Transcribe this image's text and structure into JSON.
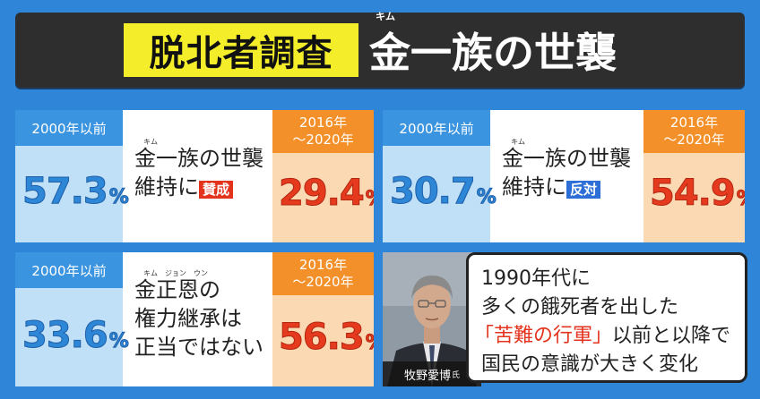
{
  "header": {
    "tag": "脱北者調査",
    "title": "金一族の世襲",
    "ruby": "キム"
  },
  "panels": [
    {
      "left_label": "2000年以前",
      "left_value": "57.3",
      "unit": "%",
      "middle_ruby": "キム",
      "middle_line1": "金一族の世襲",
      "middle_line2_prefix": "維持に",
      "middle_tag": "賛成",
      "right_label_1": "2016年",
      "right_label_2": "～2020年",
      "right_value": "29.4"
    },
    {
      "left_label": "2000年以前",
      "left_value": "30.7",
      "unit": "%",
      "middle_ruby": "キム",
      "middle_line1": "金一族の世襲",
      "middle_line2_prefix": "維持に",
      "middle_tag": "反対",
      "right_label_1": "2016年",
      "right_label_2": "～2020年",
      "right_value": "54.9"
    },
    {
      "left_label": "2000年以前",
      "left_value": "33.6",
      "unit": "%",
      "middle_ruby": "キム　ジョン　ウン",
      "middle_line1": "金正恩の",
      "middle_line2": "権力継承は",
      "middle_line3": "正当ではない",
      "right_label_1": "2016年",
      "right_label_2": "～2020年",
      "right_value": "56.3"
    }
  ],
  "person": {
    "name": "牧野愛博",
    "honorific": "氏"
  },
  "quote": {
    "line1": "1990年代に",
    "line2": "多くの餓死者を出した",
    "line3_red": "「苦難の行軍」",
    "line3_rest": "以前と以降で",
    "line4": "国民の意識が大きく変化"
  },
  "colors": {
    "background": "#2f86d8",
    "header_bg": "#2e2e2e",
    "header_tag": "#f4ee2a",
    "blue_badge": "#3b94df",
    "orange_badge": "#f4902a",
    "red_text": "#e63a1f"
  }
}
